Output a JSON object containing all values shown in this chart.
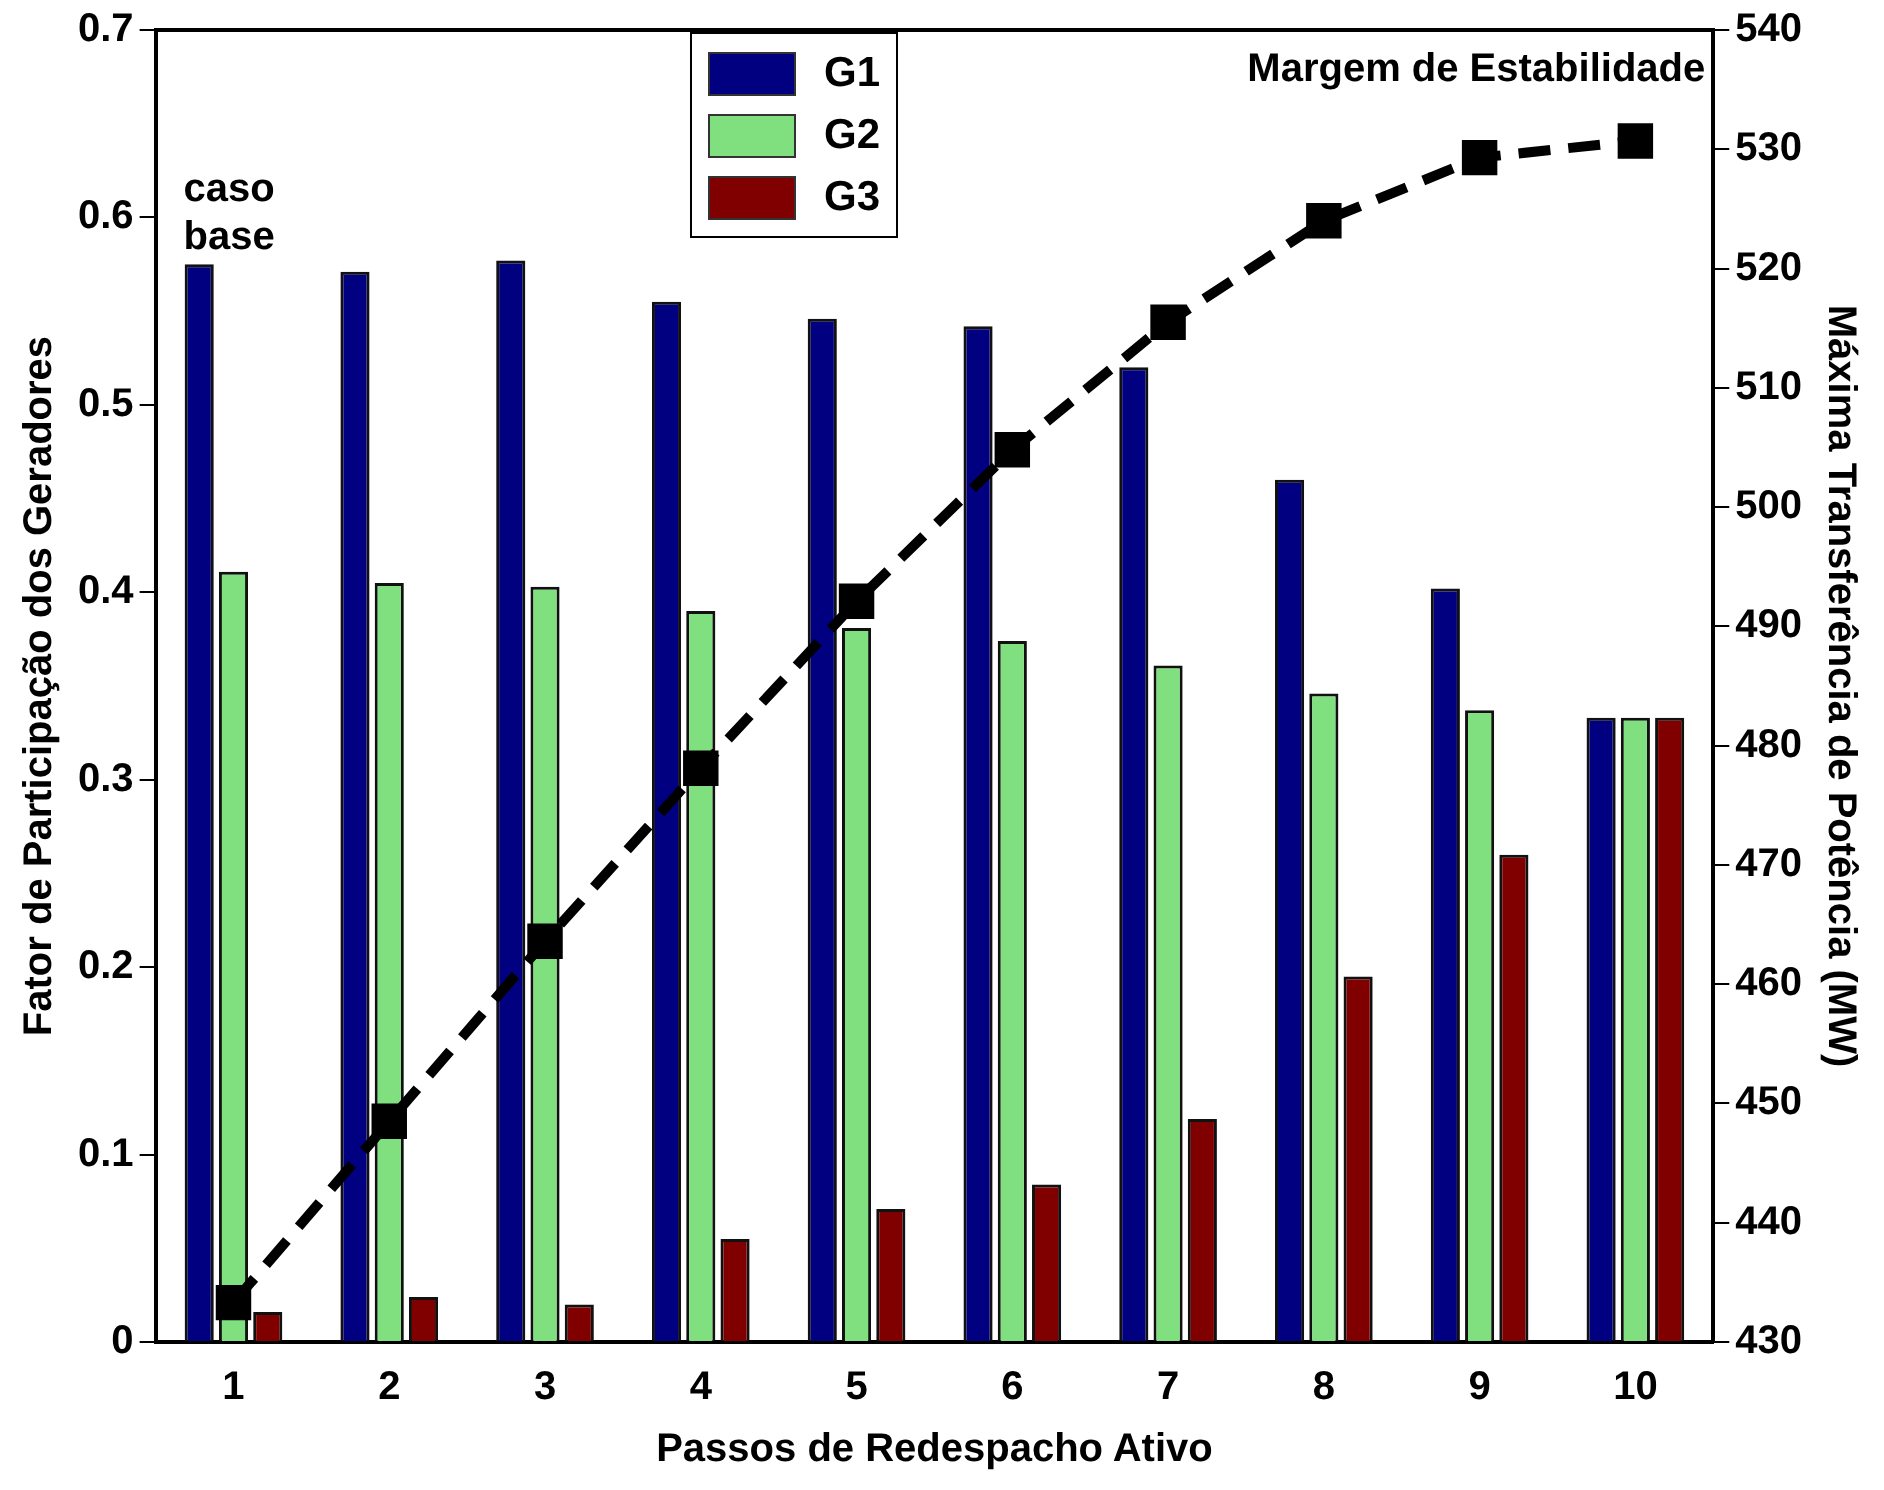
{
  "chart_data": {
    "type": "bar",
    "xlabel": "Passos de Redespacho Ativo",
    "ylabel": "Fator de Participação dos Geradores",
    "y2label": "Máxima Transferência de Potência (MW)",
    "categories": [
      "1",
      "2",
      "3",
      "4",
      "5",
      "6",
      "7",
      "8",
      "9",
      "10"
    ],
    "series": [
      {
        "name": "G1",
        "color": "#000080",
        "values": [
          0.575,
          0.571,
          0.577,
          0.555,
          0.546,
          0.542,
          0.52,
          0.46,
          0.402,
          0.333
        ]
      },
      {
        "name": "G2",
        "color": "#80e080",
        "values": [
          0.411,
          0.405,
          0.403,
          0.39,
          0.381,
          0.374,
          0.361,
          0.346,
          0.337,
          0.333
        ]
      },
      {
        "name": "G3",
        "color": "#800000",
        "values": [
          0.016,
          0.024,
          0.02,
          0.055,
          0.071,
          0.084,
          0.119,
          0.195,
          0.26,
          0.333
        ]
      },
      {
        "type": "line",
        "axis": "y2",
        "color": "#000000",
        "marker": "square",
        "line_style": "dashed",
        "values": [
          433.3,
          448.5,
          463.6,
          478.1,
          492.1,
          504.8,
          515.5,
          524.0,
          529.3,
          530.7
        ]
      }
    ],
    "ylim": [
      0,
      0.7
    ],
    "yticks": [
      0,
      0.1,
      0.2,
      0.3,
      0.4,
      0.5,
      0.6,
      0.7
    ],
    "y2lim": [
      430,
      540
    ],
    "y2ticks": [
      430,
      440,
      450,
      460,
      470,
      480,
      490,
      500,
      510,
      520,
      530,
      540
    ],
    "legend": "top",
    "grid": false,
    "annotations": [
      "caso base",
      "Margem de Estabilidade"
    ]
  }
}
